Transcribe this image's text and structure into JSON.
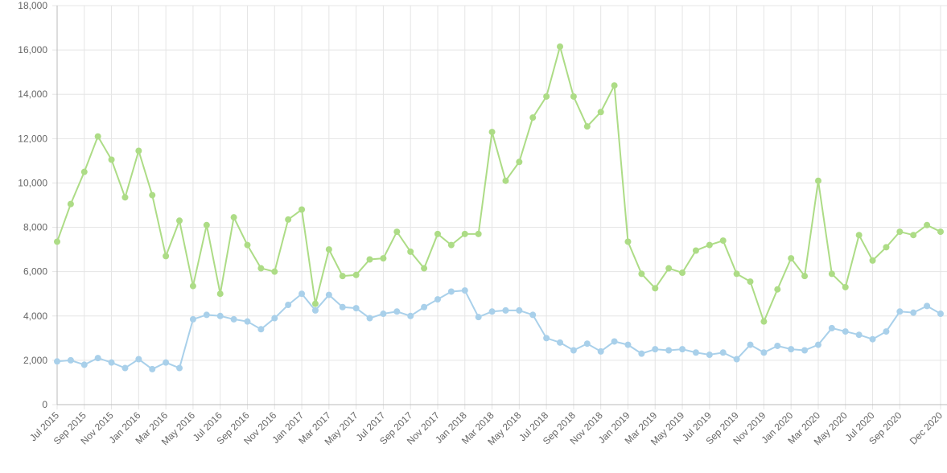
{
  "chart_data": {
    "type": "line",
    "categories": [
      "Jul 2015",
      null,
      "Sep 2015",
      null,
      "Nov 2015",
      null,
      "Jan 2016",
      null,
      "Mar 2016",
      null,
      "May 2016",
      null,
      "Jul 2016",
      null,
      "Sep 2016",
      null,
      "Nov 2016",
      null,
      "Jan 2017",
      null,
      "Mar 2017",
      null,
      "May 2017",
      null,
      "Jul 2017",
      null,
      "Sep 2017",
      null,
      "Nov 2017",
      null,
      "Jan 2018",
      null,
      "Mar 2018",
      null,
      "May 2018",
      null,
      "Jul 2018",
      null,
      "Sep 2018",
      null,
      "Nov 2018",
      null,
      "Jan 2019",
      null,
      "Mar 2019",
      null,
      "May 2019",
      null,
      "Jul 2019",
      null,
      "Sep 2019",
      null,
      "Nov 2019",
      null,
      "Jan 2020",
      null,
      "Mar 2020",
      null,
      "May 2020",
      null,
      "Jul 2020",
      null,
      "Sep 2020",
      null,
      null,
      "Dec 2020"
    ],
    "series": [
      {
        "color": "#addc86",
        "values": [
          7350,
          9050,
          10500,
          12100,
          11050,
          9350,
          11450,
          9450,
          6700,
          8300,
          5350,
          8100,
          5000,
          8450,
          7200,
          6150,
          6000,
          8350,
          8800,
          4550,
          7000,
          5800,
          5850,
          6550,
          6600,
          7800,
          6900,
          6150,
          7700,
          7200,
          7700,
          7700,
          12300,
          10100,
          10950,
          12950,
          13900,
          16150,
          13900,
          12550,
          13200,
          14400,
          7350,
          5900,
          5250,
          6150,
          5950,
          6950,
          7200,
          7400,
          5900,
          5550,
          3750,
          5200,
          6600,
          5800,
          10100,
          5900,
          5300,
          7650,
          6500,
          7100,
          7800,
          7650,
          8100,
          7800
        ]
      },
      {
        "color": "#a9d0ea",
        "values": [
          1950,
          2000,
          1800,
          2100,
          1900,
          1650,
          2050,
          1600,
          1900,
          1650,
          3850,
          4050,
          4000,
          3850,
          3750,
          3400,
          3900,
          4500,
          5000,
          4250,
          4950,
          4400,
          4350,
          3900,
          4100,
          4200,
          4000,
          4400,
          4750,
          5100,
          5150,
          3950,
          4200,
          4250,
          4250,
          4050,
          3000,
          2800,
          2450,
          2750,
          2400,
          2850,
          2700,
          2300,
          2500,
          2450,
          2500,
          2350,
          2250,
          2350,
          2050,
          2700,
          2350,
          2650,
          2500,
          2450,
          2700,
          3450,
          3300,
          3150,
          2950,
          3300,
          4200,
          4150,
          4450,
          4100
        ]
      }
    ],
    "ylim": [
      0,
      18000
    ],
    "yticks": [
      0,
      {
        "value": 2000,
        "label": "2,000"
      },
      {
        "value": 4000,
        "label": "4,000"
      },
      {
        "value": 6000,
        "label": "6,000"
      },
      {
        "value": 8000,
        "label": "8,000"
      },
      {
        "value": 10000,
        "label": "10,000"
      },
      {
        "value": 12000,
        "label": "12,000"
      },
      {
        "value": 14000,
        "label": "14,000"
      },
      {
        "value": 16000,
        "label": "16,000"
      },
      {
        "value": 18000,
        "label": "18,000"
      }
    ],
    "grid": true
  }
}
